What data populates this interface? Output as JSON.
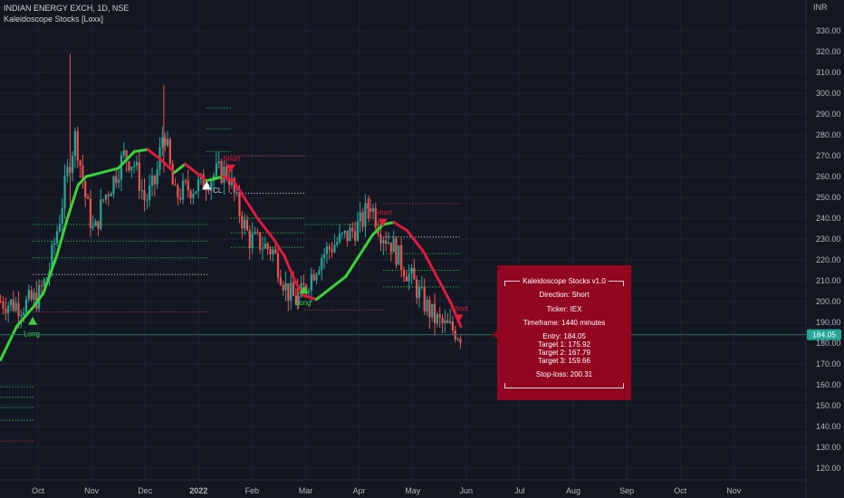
{
  "header": {
    "symbol_line": "INDIAN ENERGY EXCH, 1D, NSE",
    "indicator_line": "Kaleidoscope Stocks [Loxx]"
  },
  "currency": "INR",
  "info_panel": {
    "title": "Kaleidoscope Stocks v1.0",
    "direction": "Direction: Short",
    "ticker": "Ticker: IEX",
    "timeframe": "Timeframe: 1440 minutes",
    "entry": "Entry: 184.05",
    "target1": "Target 1: 175.92",
    "target2": "Target 2: 167.79",
    "target3": "Target 3: 159.66",
    "stoploss": "Stop-loss: 200.31"
  },
  "chart_data": {
    "type": "candlestick",
    "x_axis_labels": [
      "Oct",
      "Nov",
      "Dec",
      "2022",
      "Feb",
      "Mar",
      "Apr",
      "May",
      "Jun",
      "Jul",
      "Aug",
      "Sep",
      "Oct",
      "Nov"
    ],
    "y_ticks": [
      120,
      130,
      140,
      150,
      160,
      170,
      180,
      190,
      200,
      210,
      220,
      230,
      240,
      250,
      260,
      270,
      280,
      290,
      300,
      310,
      320,
      330
    ],
    "ylim": [
      115,
      335
    ],
    "last_price": "184.05",
    "colors": {
      "up": "#26a69a",
      "down": "#ef5350",
      "trend_up": "#3ad23a",
      "trend_down": "#e0193d",
      "background": "#131722",
      "panel": "#93061f",
      "price_tag": "#26a69a"
    },
    "signals": [
      {
        "label": "Long",
        "direction": "up",
        "month_pos": -0.1,
        "price": 191
      },
      {
        "label": "Short",
        "direction": "down",
        "month_pos": 3.6,
        "price": 264
      },
      {
        "label": "CL",
        "direction": "up",
        "month_pos": 3.15,
        "price": 256
      },
      {
        "label": "Long",
        "direction": "up",
        "month_pos": 4.97,
        "price": 206
      },
      {
        "label": "Short",
        "direction": "down",
        "month_pos": 6.44,
        "price": 238
      },
      {
        "label": "Short",
        "direction": "down",
        "month_pos": 7.86,
        "price": 192
      }
    ],
    "trend_line": [
      [
        -0.7,
        172
      ],
      [
        -0.4,
        188
      ],
      [
        -0.1,
        197
      ],
      [
        0.1,
        204
      ],
      [
        0.35,
        222
      ],
      [
        0.55,
        240
      ],
      [
        0.75,
        256
      ],
      [
        0.9,
        260
      ],
      [
        1.2,
        262
      ],
      [
        1.5,
        264
      ],
      [
        1.8,
        272
      ],
      [
        2.05,
        273
      ],
      [
        2.3,
        268
      ],
      [
        2.55,
        262
      ],
      [
        2.75,
        266
      ],
      [
        2.95,
        262
      ],
      [
        3.15,
        258
      ],
      [
        3.45,
        260
      ],
      [
        3.65,
        258
      ],
      [
        3.85,
        250
      ],
      [
        4.1,
        240
      ],
      [
        4.4,
        230
      ],
      [
        4.6,
        222
      ],
      [
        4.8,
        210
      ],
      [
        4.95,
        203
      ],
      [
        5.2,
        201
      ],
      [
        5.45,
        206
      ],
      [
        5.75,
        212
      ],
      [
        6.0,
        222
      ],
      [
        6.25,
        232
      ],
      [
        6.45,
        237
      ],
      [
        6.65,
        238
      ],
      [
        6.9,
        234
      ],
      [
        7.2,
        224
      ],
      [
        7.45,
        212
      ],
      [
        7.7,
        200
      ],
      [
        7.9,
        188
      ]
    ],
    "level_lines": [
      {
        "color": "green",
        "price": 159,
        "from": -0.7,
        "to": -0.05
      },
      {
        "color": "green",
        "price": 154,
        "from": -0.7,
        "to": -0.05
      },
      {
        "color": "green",
        "price": 149,
        "from": -0.7,
        "to": -0.05
      },
      {
        "color": "green",
        "price": 143,
        "from": -0.7,
        "to": -0.05
      },
      {
        "color": "red",
        "price": 133,
        "from": -0.7,
        "to": -0.05
      },
      {
        "color": "red",
        "price": 195,
        "from": -0.1,
        "to": 3.2
      },
      {
        "color": "green",
        "price": 237,
        "from": -0.1,
        "to": 3.2
      },
      {
        "color": "green",
        "price": 229,
        "from": -0.1,
        "to": 3.2
      },
      {
        "color": "green",
        "price": 221,
        "from": -0.1,
        "to": 3.2
      },
      {
        "color": "white",
        "price": 213,
        "from": -0.1,
        "to": 3.2
      },
      {
        "color": "green",
        "price": 293,
        "from": 3.15,
        "to": 3.6
      },
      {
        "color": "green",
        "price": 283,
        "from": 3.15,
        "to": 3.6
      },
      {
        "color": "green",
        "price": 272,
        "from": 3.15,
        "to": 3.6
      },
      {
        "color": "red",
        "price": 270,
        "from": 3.6,
        "to": 5.0
      },
      {
        "color": "white",
        "price": 252,
        "from": 3.6,
        "to": 5.0
      },
      {
        "color": "green",
        "price": 240,
        "from": 3.6,
        "to": 5.0
      },
      {
        "color": "green",
        "price": 233,
        "from": 3.6,
        "to": 5.0
      },
      {
        "color": "green",
        "price": 226,
        "from": 3.6,
        "to": 5.0
      },
      {
        "color": "red",
        "price": 196,
        "from": 4.97,
        "to": 6.45
      },
      {
        "color": "green",
        "price": 237,
        "from": 4.97,
        "to": 6.45
      },
      {
        "color": "red",
        "price": 247,
        "from": 6.45,
        "to": 7.9
      },
      {
        "color": "white",
        "price": 231,
        "from": 6.45,
        "to": 7.9
      },
      {
        "color": "green",
        "price": 223,
        "from": 6.45,
        "to": 7.9
      },
      {
        "color": "green",
        "price": 215,
        "from": 6.45,
        "to": 7.9
      },
      {
        "color": "green",
        "price": 207,
        "from": 6.45,
        "to": 7.9
      }
    ],
    "candle_anchors": [
      [
        -0.7,
        200
      ],
      [
        -0.3,
        198
      ],
      [
        0.0,
        202
      ],
      [
        0.2,
        214
      ],
      [
        0.4,
        240
      ],
      [
        0.55,
        262
      ],
      [
        0.7,
        280
      ],
      [
        0.9,
        248
      ],
      [
        1.05,
        232
      ],
      [
        1.2,
        248
      ],
      [
        1.4,
        258
      ],
      [
        1.6,
        270
      ],
      [
        1.8,
        266
      ],
      [
        2.0,
        248
      ],
      [
        2.2,
        258
      ],
      [
        2.35,
        284
      ],
      [
        2.55,
        250
      ],
      [
        2.75,
        254
      ],
      [
        2.95,
        255
      ],
      [
        3.15,
        258
      ],
      [
        3.35,
        262
      ],
      [
        3.55,
        262
      ],
      [
        3.75,
        244
      ],
      [
        3.95,
        230
      ],
      [
        4.15,
        228
      ],
      [
        4.4,
        224
      ],
      [
        4.65,
        205
      ],
      [
        4.85,
        200
      ],
      [
        5.05,
        210
      ],
      [
        5.3,
        222
      ],
      [
        5.55,
        228
      ],
      [
        5.8,
        232
      ],
      [
        6.05,
        238
      ],
      [
        6.2,
        248
      ],
      [
        6.4,
        234
      ],
      [
        6.6,
        228
      ],
      [
        6.8,
        218
      ],
      [
        7.0,
        210
      ],
      [
        7.2,
        200
      ],
      [
        7.4,
        192
      ],
      [
        7.6,
        188
      ],
      [
        7.8,
        186
      ],
      [
        7.9,
        184
      ]
    ]
  }
}
